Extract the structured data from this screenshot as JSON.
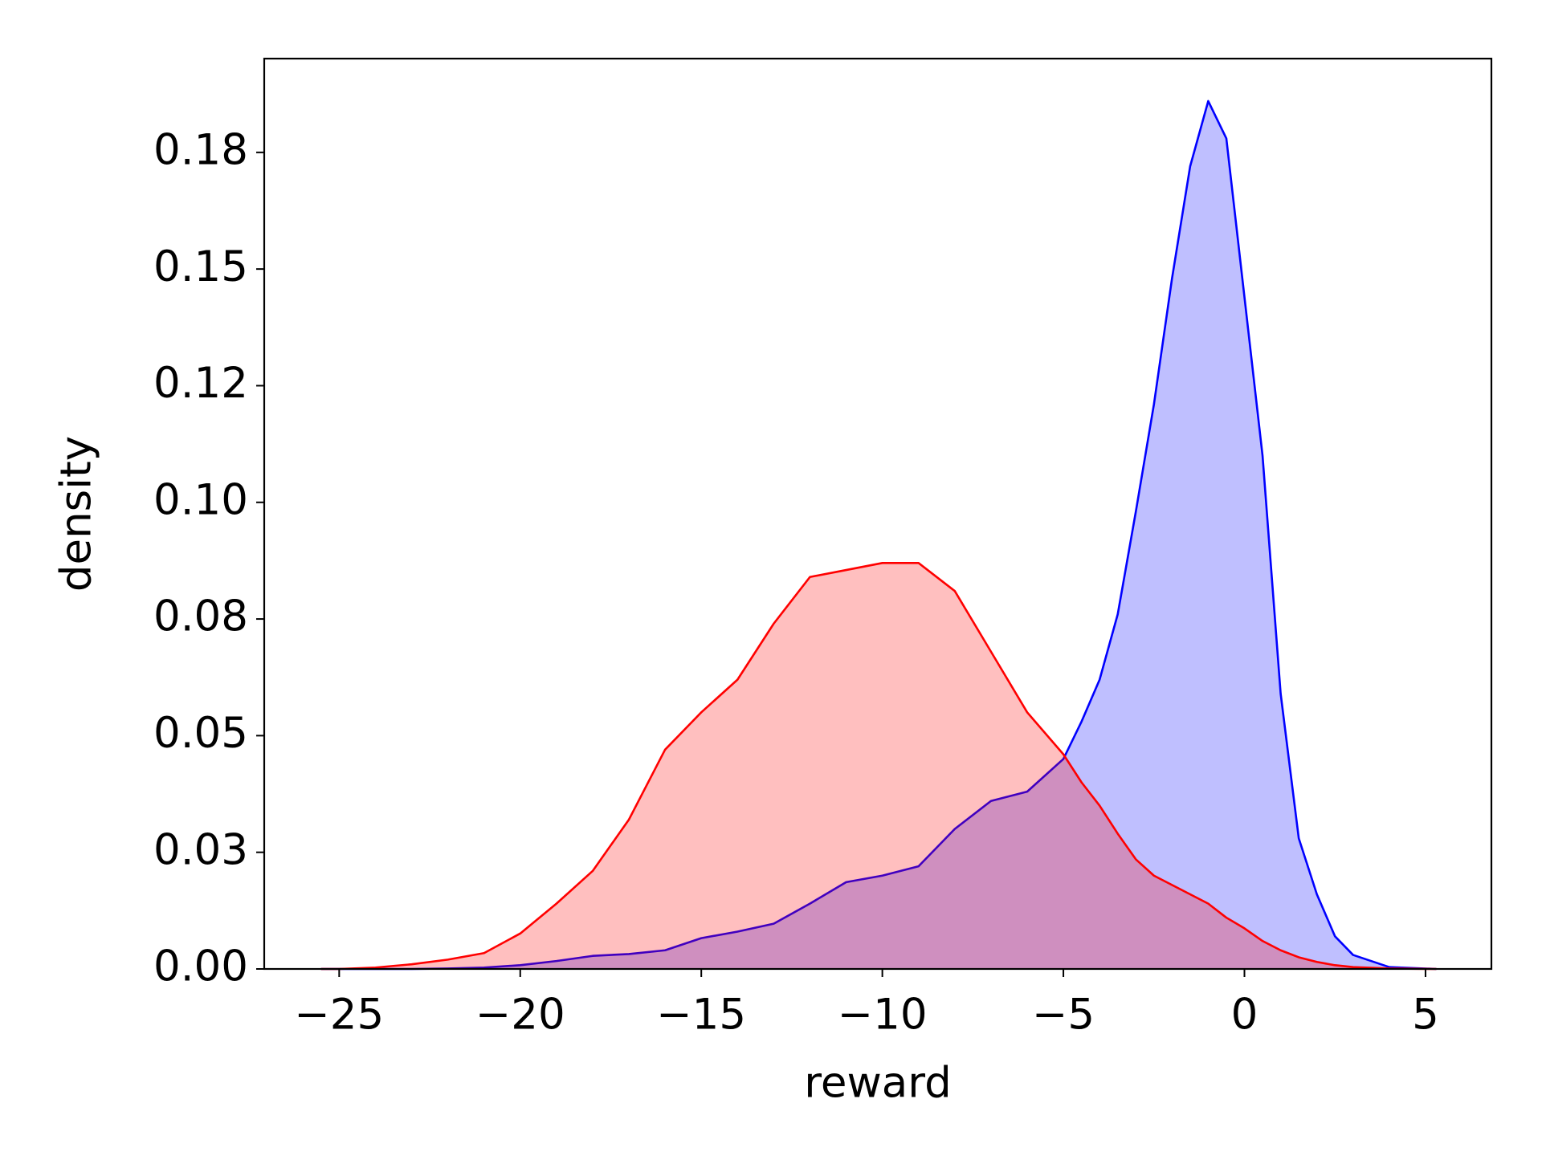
{
  "chart_data": {
    "type": "area",
    "x_label": "reward",
    "y_label": "density",
    "x": [
      -25.5,
      -25,
      -24,
      -23,
      -22,
      -21,
      -20,
      -19,
      -18,
      -17,
      -16,
      -15,
      -14,
      -13,
      -12,
      -11,
      -10,
      -9,
      -8,
      -7,
      -6,
      -5,
      -4.5,
      -4,
      -3.5,
      -3,
      -2.5,
      -2,
      -1.5,
      -1,
      -0.5,
      0,
      0.5,
      1,
      1.5,
      2,
      2.5,
      3,
      4,
      5.3
    ],
    "series": [
      {
        "color": "#0000ff",
        "values": [
          0,
          0,
          0,
          0,
          0.0001,
          0.0003,
          0.0008,
          0.0017,
          0.0028,
          0.0032,
          0.004,
          0.0066,
          0.008,
          0.0097,
          0.014,
          0.0186,
          0.02,
          0.022,
          0.03,
          0.036,
          0.038,
          0.045,
          0.053,
          0.062,
          0.076,
          0.098,
          0.121,
          0.148,
          0.172,
          0.186,
          0.178,
          0.144,
          0.11,
          0.059,
          0.028,
          0.016,
          0.007,
          0.003,
          0.0004,
          0
        ]
      },
      {
        "color": "#ff0000",
        "values": [
          0,
          0,
          0.0003,
          0.001,
          0.002,
          0.0034,
          0.0076,
          0.014,
          0.021,
          0.032,
          0.047,
          0.055,
          0.062,
          0.074,
          0.084,
          0.0855,
          0.087,
          0.087,
          0.081,
          0.068,
          0.055,
          0.046,
          0.04,
          0.035,
          0.029,
          0.0235,
          0.02,
          0.018,
          0.016,
          0.014,
          0.011,
          0.0087,
          0.006,
          0.004,
          0.0025,
          0.0015,
          0.0008,
          0.0004,
          0.0001,
          0
        ]
      }
    ],
    "fill_opacity": 0.25,
    "xlim": [
      -27.07,
      6.82
    ],
    "ylim": [
      0,
      0.1951
    ],
    "xticks": [
      {
        "value": -25,
        "label": "−25"
      },
      {
        "value": -20,
        "label": "−20"
      },
      {
        "value": -15,
        "label": "−15"
      },
      {
        "value": -10,
        "label": "−10"
      },
      {
        "value": -5,
        "label": "−5"
      },
      0,
      5
    ],
    "yticks": [
      {
        "value": 0,
        "label": "0.00"
      },
      {
        "value": 0.025,
        "label": "0.03"
      },
      0.05,
      {
        "value": 0.075,
        "label": "0.08"
      },
      {
        "value": 0.1,
        "label": "0.10"
      },
      {
        "value": 0.125,
        "label": "0.12"
      },
      0.15,
      {
        "value": 0.175,
        "label": "0.18"
      }
    ],
    "grid": false
  }
}
